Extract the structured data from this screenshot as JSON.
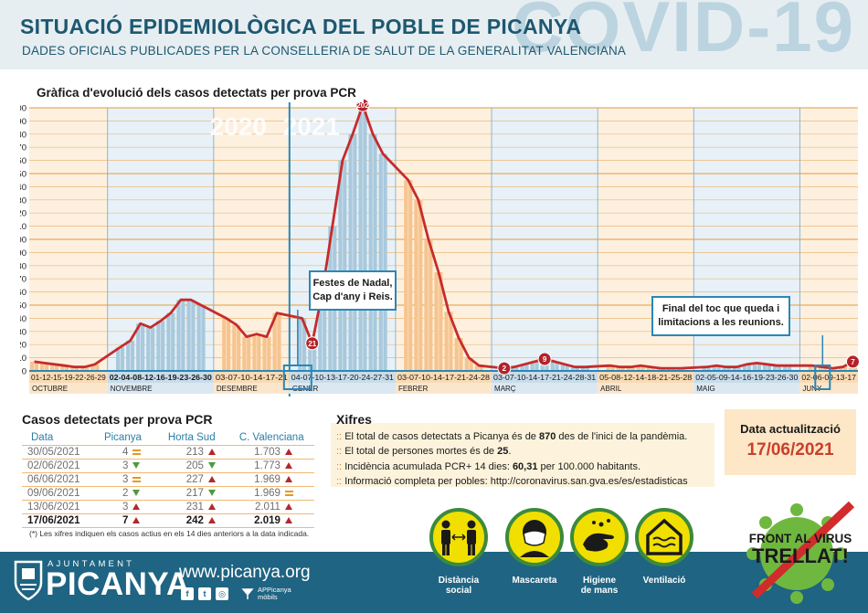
{
  "header": {
    "title": "SITUACIÓ EPIDEMIOLÒGICA DEL POBLE DE PICANYA",
    "subtitle": "DADES OFICIALS PUBLICADES PER LA CONSELLERIA DE SALUT DE LA GENERALITAT VALENCIANA",
    "watermark": "COVID-19"
  },
  "chart_data": {
    "type": "area",
    "title": "Gràfica d'evolució dels casos detectats per prova PCR",
    "xlabel": "",
    "ylabel": "",
    "ylim": [
      0,
      200
    ],
    "yticks": [
      0,
      10,
      20,
      30,
      40,
      50,
      60,
      70,
      80,
      90,
      100,
      110,
      120,
      130,
      140,
      150,
      160,
      170,
      180,
      190,
      200
    ],
    "grid": true,
    "year_labels": [
      "2020",
      "2021"
    ],
    "months": [
      {
        "name": "OCTUBRE",
        "days": "01-12-15-19-22-26-29",
        "fill": "orange",
        "points": [
          7,
          6,
          5,
          4,
          3,
          3,
          5
        ]
      },
      {
        "name": "NOVEMBRE",
        "days": "02-04-08-12-16-19-23-26-30",
        "fill": "blue",
        "points": [
          18,
          23,
          36,
          33,
          38,
          44,
          54,
          54,
          50
        ]
      },
      {
        "name": "DESEMBRE",
        "days": "03-07-10-14-17-21",
        "fill": "orange",
        "points": [
          40,
          35,
          26,
          28,
          26,
          44
        ]
      },
      {
        "name": "GENER",
        "days": "04-07-10-13-17-20-24-27-31",
        "fill": "blue",
        "points": [
          40,
          21,
          60,
          110,
          160,
          180,
          202,
          180,
          165
        ]
      },
      {
        "name": "FEBRER",
        "days": "03-07-10-14-17-21-24-28",
        "fill": "orange",
        "points": [
          145,
          130,
          100,
          75,
          45,
          25,
          10,
          4
        ]
      },
      {
        "name": "MARÇ",
        "days": "03-07-10-14-17-21-24-28-31",
        "fill": "blue",
        "points": [
          2,
          3,
          5,
          7,
          9,
          7,
          5,
          3,
          3
        ]
      },
      {
        "name": "ABRIL",
        "days": "05-08-12-14-18-21-25-28",
        "fill": "orange",
        "points": [
          4,
          3,
          3,
          4,
          3,
          2,
          2,
          2
        ]
      },
      {
        "name": "MAIG",
        "days": "02-05-09-14-16-19-23-26-30",
        "fill": "blue",
        "points": [
          3,
          4,
          3,
          3,
          5,
          6,
          5,
          4,
          4
        ]
      },
      {
        "name": "JUNY",
        "days": "02-06-09-13-17",
        "fill": "orange",
        "points": [
          4,
          3,
          2,
          3,
          7
        ]
      }
    ],
    "point_labels": [
      {
        "month": 3,
        "index": 1,
        "value": 21
      },
      {
        "month": 3,
        "index": 6,
        "value": 202
      },
      {
        "month": 5,
        "index": 0,
        "value": 2
      },
      {
        "month": 5,
        "index": 4,
        "value": 9
      },
      {
        "month": 8,
        "index": 4,
        "value": 7
      }
    ],
    "annotations": [
      {
        "text": [
          "Festes de Nadal,",
          "Cap d'any i Reis."
        ]
      },
      {
        "text": [
          "Final del toc que queda i",
          "limitacions a les reunions."
        ]
      }
    ],
    "colors": {
      "line": "#c62b2b",
      "orange_fill": "#f6c48e",
      "blue_fill": "#a9c9dd",
      "orange_band": "#f9dab4",
      "blue_band": "#c8dcea",
      "grid": "#e8a552",
      "marker": "#b3232a"
    }
  },
  "cases": {
    "title": "Casos detectats per prova PCR",
    "headers": [
      "Data",
      "Picanya",
      "Horta Sud",
      "C. Valenciana"
    ],
    "rows": [
      {
        "date": "30/05/2021",
        "picanya": "4",
        "picanya_trend": "eq",
        "horta": "213",
        "horta_trend": "up",
        "cv": "1.703",
        "cv_trend": "up"
      },
      {
        "date": "02/06/2021",
        "picanya": "3",
        "picanya_trend": "down",
        "horta": "205",
        "horta_trend": "down",
        "cv": "1.773",
        "cv_trend": "up"
      },
      {
        "date": "06/06/2021",
        "picanya": "3",
        "picanya_trend": "eq",
        "horta": "227",
        "horta_trend": "up",
        "cv": "1.969",
        "cv_trend": "up"
      },
      {
        "date": "09/06/2021",
        "picanya": "2",
        "picanya_trend": "down",
        "horta": "217",
        "horta_trend": "down",
        "cv": "1.969",
        "cv_trend": "eq"
      },
      {
        "date": "13/06/2021",
        "picanya": "3",
        "picanya_trend": "up",
        "horta": "231",
        "horta_trend": "up",
        "cv": "2.011",
        "cv_trend": "up"
      },
      {
        "date": "17/06/2021",
        "picanya": "7",
        "picanya_trend": "up",
        "horta": "242",
        "horta_trend": "up",
        "cv": "2.019",
        "cv_trend": "up"
      }
    ],
    "note": "(*) Les xifres indiquen els casos actius en els 14 dies anteriors a la data indicada."
  },
  "xifres": {
    "title": "Xifres",
    "prefix": "::",
    "lines": [
      {
        "before": "El total de casos detectats a Picanya és de ",
        "bold": "870",
        "after": " des de l'inici de la pandèmia."
      },
      {
        "before": "El total de persones mortes és de ",
        "bold": "25",
        "after": "."
      },
      {
        "before": "Incidència acumulada PCR+ 14 dies: ",
        "bold": "60,31",
        "after": " per 100.000 habitants."
      },
      {
        "before": "Informació completa per pobles: http://coronavirus.san.gva.es/es/estadisticas",
        "bold": "",
        "after": ""
      }
    ]
  },
  "update": {
    "label": "Data actualització",
    "date": "17/06/2021"
  },
  "measures": [
    {
      "label1": "Distància",
      "label2": "social",
      "icon": "social-distance-icon"
    },
    {
      "label1": "Mascareta",
      "label2": "",
      "icon": "mask-icon"
    },
    {
      "label1": "Higiene",
      "label2": "de mans",
      "icon": "hand-washing-icon"
    },
    {
      "label1": "Ventilació",
      "label2": "",
      "icon": "ventilation-icon"
    }
  ],
  "badge": {
    "line1": "FRONT AL VIRUS",
    "line2": "TRELLAT!"
  },
  "footer": {
    "ajuntament": "AJUNTAMENT",
    "town": "PICANYA",
    "website": "www.picanya.org",
    "social": [
      "f",
      "t",
      "◎"
    ],
    "app": [
      "APPicanya",
      "mòbils"
    ]
  }
}
